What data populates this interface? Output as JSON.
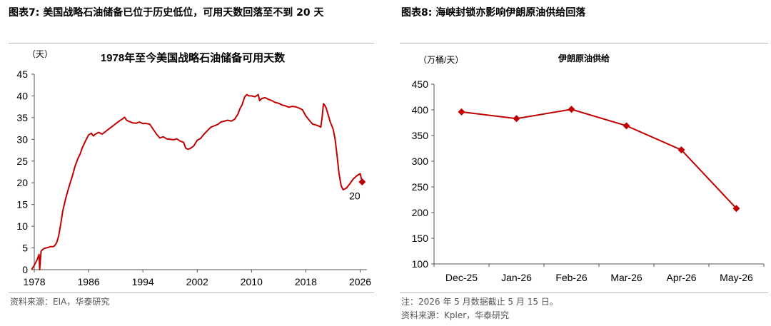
{
  "figures": [
    {
      "title": "图表7:  美国战略石油储备已位于历史低位，可用天数回落至不到  20 天",
      "source": "资料来源：EIA，华泰研究",
      "chart_data": {
        "type": "line",
        "title": "1978年至今美国战略石油储备可用天数",
        "ylabel": "（天）",
        "xlabel": "",
        "ylim": [
          0,
          45
        ],
        "xlim": [
          1978,
          2027
        ],
        "xticks": [
          "1978",
          "1986",
          "1994",
          "2002",
          "2010",
          "2018",
          "2026"
        ],
        "yticks": [
          "0",
          "5",
          "10",
          "15",
          "20",
          "25",
          "30",
          "35",
          "40",
          "45"
        ],
        "grid": false,
        "legend": "none",
        "color": "#c00000",
        "series": [
          {
            "x": [
              1977.6,
              1978.0,
              1978.4,
              1978.7,
              1978.8,
              1979.0,
              1979.2,
              1979.5,
              1980.0,
              1980.4,
              1980.8,
              1981.0,
              1981.3,
              1981.6,
              1981.9,
              1982.2,
              1982.6,
              1983.0,
              1983.3,
              1983.6,
              1984.0,
              1984.4,
              1984.8,
              1985.0,
              1985.5,
              1986.0,
              1986.4,
              1986.7,
              1987.0,
              1987.5,
              1988.0,
              1988.5,
              1989.0,
              1989.5,
              1990.0,
              1990.5,
              1991.0,
              1991.3,
              1991.6,
              1992.0,
              1992.5,
              1993.0,
              1993.5,
              1994.0,
              1994.3,
              1995.0,
              1996.0,
              1996.5,
              1997.0,
              1997.5,
              1998.0,
              1998.5,
              1999.0,
              1999.5,
              2000.0,
              2000.3,
              2000.6,
              2001.0,
              2001.5,
              2002.0,
              2002.5,
              2003.0,
              2003.5,
              2004.0,
              2004.5,
              2005.0,
              2005.5,
              2006.0,
              2006.5,
              2007.0,
              2007.5,
              2008.0,
              2008.3,
              2008.6,
              2009.0,
              2009.3,
              2009.6,
              2010.0,
              2010.5,
              2011.0,
              2011.2,
              2011.5,
              2012.0,
              2012.5,
              2013.0,
              2013.5,
              2014.0,
              2014.5,
              2015.0,
              2015.5,
              2016.0,
              2016.5,
              2017.0,
              2017.5,
              2018.0,
              2018.5,
              2019.0,
              2019.5,
              2020.0,
              2020.2,
              2020.4,
              2020.6,
              2020.8,
              2021.0,
              2021.3,
              2021.6,
              2022.0,
              2022.3,
              2022.6,
              2022.9,
              2023.2,
              2023.5,
              2024.0,
              2024.5,
              2025.0,
              2025.5,
              2026.0,
              2026.2
            ],
            "y": [
              0,
              1.0,
              2.2,
              3.5,
              0,
              4.2,
              4.6,
              4.9,
              5.1,
              5.3,
              5.3,
              5.5,
              6.2,
              7.8,
              10.5,
              13.5,
              16.2,
              18.5,
              20.0,
              21.5,
              23.8,
              25.5,
              26.8,
              27.8,
              29.5,
              31.0,
              31.4,
              30.8,
              31.2,
              31.6,
              31.2,
              31.8,
              32.4,
              33.0,
              33.6,
              34.2,
              34.7,
              35.1,
              34.4,
              34.1,
              33.8,
              33.7,
              34.0,
              33.6,
              33.7,
              33.5,
              31.2,
              30.3,
              30.6,
              30.1,
              30.0,
              29.9,
              30.1,
              29.6,
              29.3,
              28.0,
              27.7,
              27.9,
              28.5,
              29.8,
              30.2,
              31.2,
              32.0,
              32.8,
              33.1,
              33.4,
              34.0,
              34.2,
              34.4,
              34.2,
              34.6,
              35.8,
              37.1,
              37.9,
              39.8,
              40.3,
              40.0,
              40.0,
              39.8,
              40.3,
              38.9,
              39.4,
              39.6,
              39.2,
              38.9,
              38.5,
              38.3,
              37.9,
              37.7,
              37.4,
              37.6,
              37.5,
              37.2,
              36.8,
              35.4,
              34.4,
              33.5,
              33.3,
              33.0,
              32.8,
              35.0,
              38.2,
              37.8,
              37.2,
              35.6,
              34.0,
              32.5,
              30.2,
              26.2,
              22.0,
              19.3,
              18.4,
              18.8,
              19.8,
              20.9,
              21.6,
              22.1,
              20.8
            ]
          }
        ],
        "end_marker": {
          "x": 2026.3,
          "y": 20.2
        },
        "annotation": {
          "text": "20",
          "x": 2025.2,
          "y": 17
        }
      }
    },
    {
      "title": "图表8:  海峡封锁亦影响伊朗原油供给回落",
      "note": "注：2026 年 5 月数据截止 5 月 15 日。",
      "source": "资料来源：Kpler，华泰研究",
      "chart_data": {
        "type": "line",
        "title": "伊朗原油供给",
        "ylabel": "（万桶/天）",
        "xlabel": "",
        "categories": [
          "Dec-25",
          "Jan-26",
          "Feb-26",
          "Mar-26",
          "Apr-26",
          "May-26"
        ],
        "ylim": [
          100,
          450
        ],
        "yticks": [
          "100",
          "150",
          "200",
          "250",
          "300",
          "350",
          "400",
          "450"
        ],
        "grid": false,
        "legend": "none",
        "color": "#c00000",
        "marker": "diamond",
        "series": [
          {
            "values": [
              396,
              383,
              401,
              369,
              322,
              208
            ]
          }
        ]
      }
    }
  ]
}
